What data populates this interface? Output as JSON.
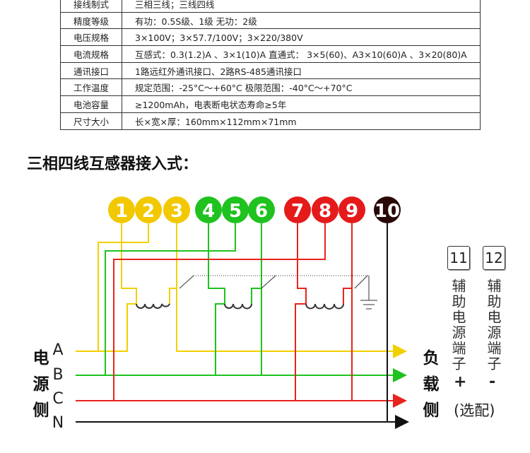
{
  "table": {
    "rows": [
      [
        "接线制式",
        "三相三线；三线四线"
      ],
      [
        "精度等级",
        "有功：0.5S级、1级   无功：2级"
      ],
      [
        "电压规格",
        "3×100V；3×57.7/100V；3×220/380V"
      ],
      [
        "电流规格",
        "互感式：0.3(1.2)A 、3×1(10)A 直通式： 3×5(60)、A3×10(60)A 、3×20(80)A"
      ],
      [
        "通讯接口",
        "1路远红外通讯接口、2路RS-485通讯接口"
      ],
      [
        "工作温度",
        "规定范围：-25°C～+60°C   极限范围：-40°C～+70°C"
      ],
      [
        "电池容量",
        "≥1200mAh，电表断电状态寿命≥5年"
      ],
      [
        "尺寸大小",
        "长×宽×厚：160mm×112mm×71mm"
      ]
    ]
  },
  "section_title": "三相四线互感器接入式：",
  "diagram": {
    "terminals": [
      "1",
      "2",
      "3",
      "4",
      "5",
      "6",
      "7",
      "8",
      "9",
      "10"
    ],
    "phases": [
      "A",
      "B",
      "C",
      "N"
    ],
    "source_side": "电源侧",
    "load_side": "负载侧",
    "aux_terminals": [
      {
        "number": "11",
        "label": "辅助电源端子",
        "sign": "+"
      },
      {
        "number": "12",
        "label": "辅助电源端子",
        "sign": "-"
      }
    ],
    "optional": "(选配)"
  }
}
